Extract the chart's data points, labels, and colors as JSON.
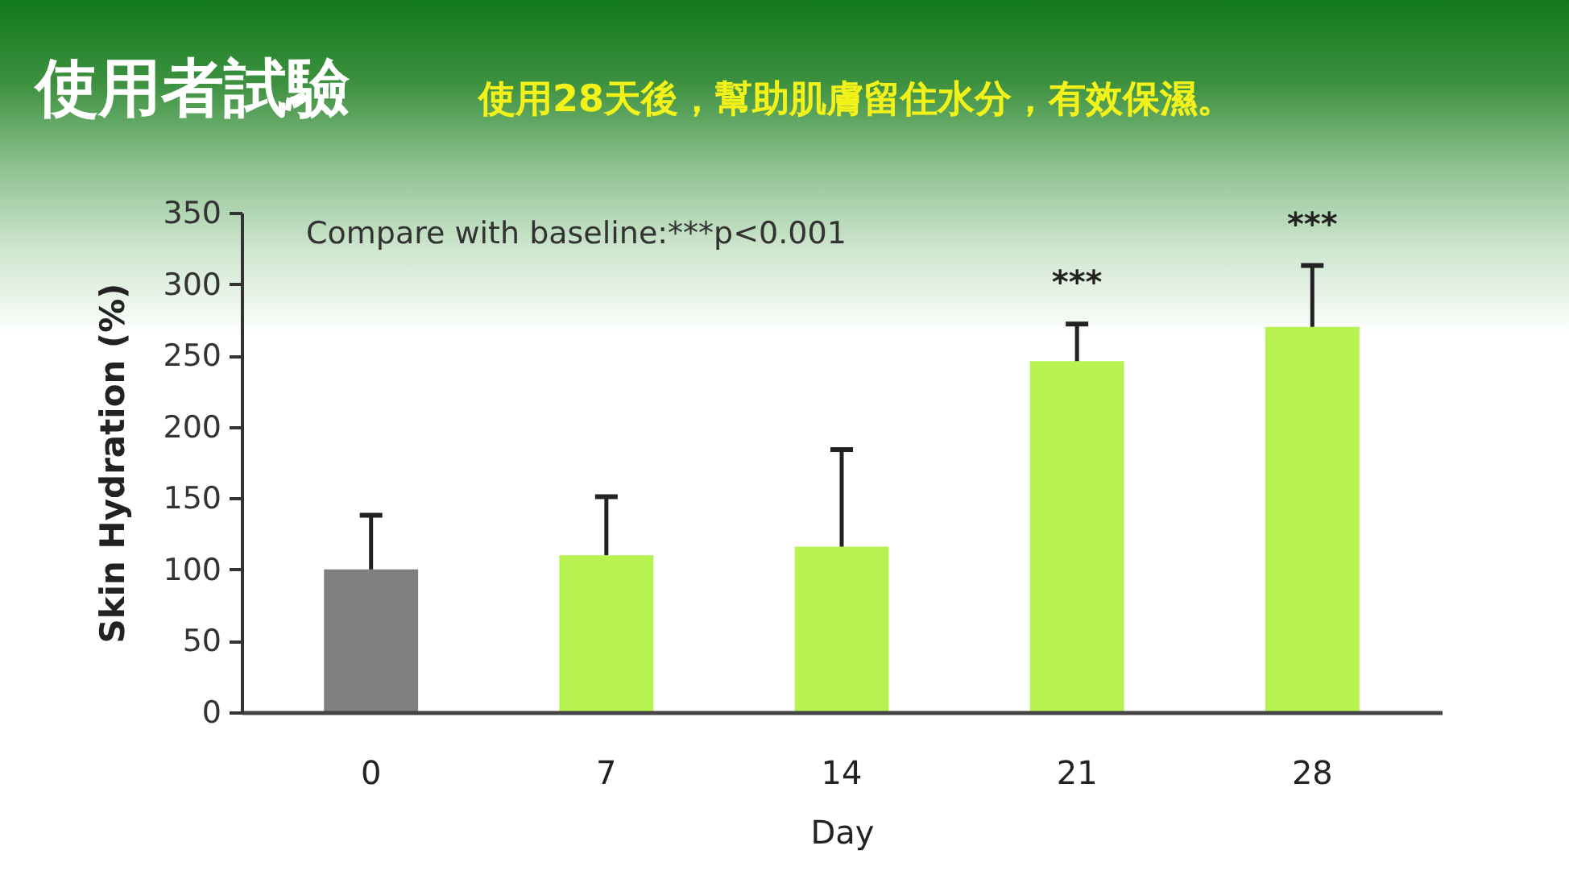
{
  "chart_data": {
    "type": "bar",
    "title": "使用者試驗",
    "subtitle": "使用28天後，幫助肌膚留住水分，有效保濕。",
    "xlabel": "Day",
    "ylabel": "Skin Hydration (%)",
    "categories": [
      "0",
      "7",
      "14",
      "21",
      "28"
    ],
    "values": [
      100,
      110,
      116,
      246,
      270
    ],
    "colors": [
      "#808080",
      "#b6f351",
      "#b6f351",
      "#b6f351",
      "#b6f351"
    ],
    "errors": [
      [
        100,
        138
      ],
      [
        110,
        151
      ],
      [
        116,
        184
      ],
      [
        246,
        272
      ],
      [
        270,
        313
      ]
    ],
    "ylim": [
      0,
      350
    ],
    "yticks": [
      0,
      50,
      100,
      150,
      200,
      250,
      300,
      350
    ],
    "annotations": [
      "Compare with baseline:***p<0.001",
      {
        "text": "***",
        "x": "21",
        "y": 272
      },
      {
        "text": "***",
        "x": "28",
        "y": 313
      }
    ]
  }
}
